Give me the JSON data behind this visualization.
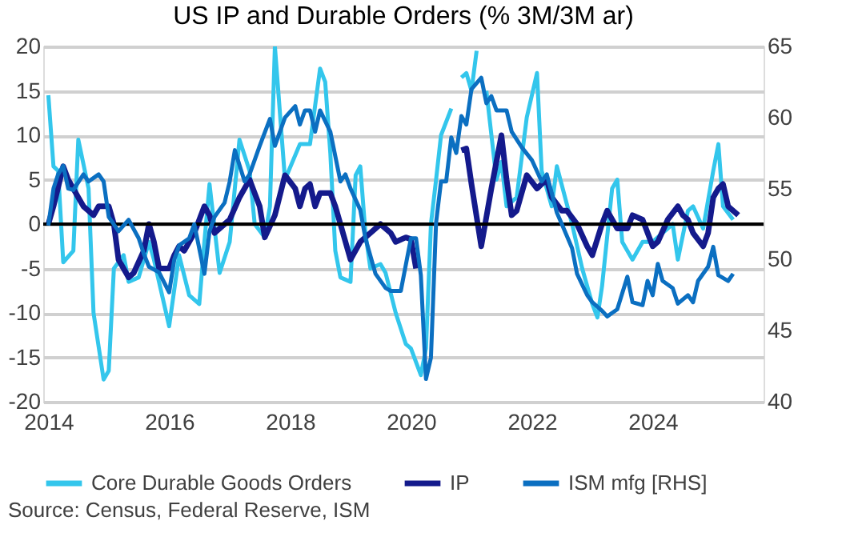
{
  "chart_data": {
    "type": "line",
    "title": "US IP and Durable Orders (% 3M/3M ar)",
    "xlim": [
      "2013-12",
      "2025-11"
    ],
    "xticks": [
      "2014",
      "2016",
      "2018",
      "2020",
      "2022",
      "2024"
    ],
    "ylim": [
      -20,
      20
    ],
    "yticks": [
      -20,
      -15,
      -10,
      -5,
      0,
      5,
      10,
      15,
      20
    ],
    "y2lim": [
      40,
      65
    ],
    "y2ticks": [
      40,
      45,
      50,
      55,
      60,
      65
    ],
    "grid": "y",
    "legend": "bottom",
    "line_style": "solid",
    "marker": "none",
    "ref_lines": [
      {
        "axis": "y",
        "value": 0,
        "color": "#000000"
      }
    ],
    "annotations": [
      "Source: Census, Federal Reserve, ISM"
    ],
    "series": [
      {
        "name": "Core Durable Goods Orders",
        "color": "#33c6ec",
        "x": [
          "2014-01",
          "2014-02",
          "2014-03",
          "2014-04",
          "2014-06",
          "2014-07",
          "2014-09",
          "2014-10",
          "2014-12",
          "2015-01",
          "2015-02",
          "2015-04",
          "2015-05",
          "2015-07",
          "2015-09",
          "2015-10",
          "2016-01",
          "2016-03",
          "2016-05",
          "2016-07",
          "2016-08",
          "2016-09",
          "2016-11",
          "2017-01",
          "2017-03",
          "2017-05",
          "2017-06",
          "2017-08",
          "2017-09",
          "2017-10",
          "2017-12",
          "2018-03",
          "2018-05",
          "2018-07",
          "2018-08",
          "2018-09",
          "2018-10",
          "2018-11",
          "2019-01",
          "2019-02",
          "2019-03",
          "2019-04",
          "2019-05",
          "2019-07",
          "2019-08",
          "2019-10",
          "2019-12",
          "2020-01",
          "2020-03",
          "2020-04",
          "2020-05",
          "2020-06",
          "2020-07",
          "2020-09",
          "2020-10",
          "2020-11",
          "2020-12",
          "2021-01",
          "2021-02",
          "2021-03",
          "2021-04",
          "2021-06",
          "2021-07",
          "2021-08",
          "2021-10",
          "2021-12",
          "2022-02",
          "2022-03",
          "2022-05",
          "2022-06",
          "2022-09",
          "2022-11",
          "2023-01",
          "2023-02",
          "2023-03",
          "2023-05",
          "2023-06",
          "2023-07",
          "2023-09",
          "2023-11",
          "2024-01",
          "2024-03",
          "2024-05",
          "2024-06",
          "2024-08",
          "2024-09",
          "2024-11",
          "2025-01",
          "2025-02",
          "2025-03",
          "2025-05"
        ],
        "values": [
          14.5,
          6.5,
          6,
          -4.3,
          -3,
          9.5,
          4,
          -10,
          -17.5,
          -16.5,
          -5,
          -3.5,
          -6.5,
          -6,
          -2,
          -4,
          -11.5,
          -3.5,
          -8,
          -9,
          -2,
          4.5,
          -5.5,
          -2,
          9.5,
          6,
          0,
          -1.5,
          2,
          20,
          5,
          9,
          9,
          17.5,
          16,
          8,
          -3,
          -6,
          -6.5,
          5.5,
          6.5,
          -1,
          -5,
          -4.5,
          -5.5,
          -10,
          -13.5,
          -14,
          -17,
          -14,
          0,
          5,
          10,
          13,
          null,
          16.5,
          17,
          15,
          19.5,
          null,
          15,
          5,
          7,
          2,
          3,
          12,
          17,
          6,
          2,
          6.5,
          0,
          -5,
          -9,
          -10.5,
          -7,
          4,
          5,
          -2,
          -4,
          -2,
          -2,
          -1,
          0,
          -4,
          1.5,
          2,
          -0.5,
          6,
          9,
          2,
          0.5
        ]
      },
      {
        "name": "IP",
        "color": "#141a8c",
        "x": [
          "2014-01",
          "2014-02",
          "2014-04",
          "2014-05",
          "2014-07",
          "2014-08",
          "2014-10",
          "2014-11",
          "2015-01",
          "2015-02",
          "2015-03",
          "2015-05",
          "2015-06",
          "2015-08",
          "2015-09",
          "2015-10",
          "2015-11",
          "2016-01",
          "2016-02",
          "2016-03",
          "2016-04",
          "2016-06",
          "2016-08",
          "2016-09",
          "2016-10",
          "2016-12",
          "2017-01",
          "2017-03",
          "2017-05",
          "2017-07",
          "2017-08",
          "2017-10",
          "2017-12",
          "2018-02",
          "2018-03",
          "2018-04",
          "2018-05",
          "2018-06",
          "2018-07",
          "2018-09",
          "2018-10",
          "2018-11",
          "2019-01",
          "2019-03",
          "2019-05",
          "2019-07",
          "2019-09",
          "2019-10",
          "2019-12",
          "2020-01",
          "2020-02",
          "2020-03",
          "2020-10",
          "2020-11",
          "2020-12",
          "2021-01",
          "2021-03",
          "2021-05",
          "2021-07",
          "2021-08",
          "2021-09",
          "2021-10",
          "2021-12",
          "2022-02",
          "2022-03",
          "2022-04",
          "2022-05",
          "2022-07",
          "2022-08",
          "2022-10",
          "2022-12",
          "2023-01",
          "2023-03",
          "2023-04",
          "2023-06",
          "2023-08",
          "2023-09",
          "2023-11",
          "2024-01",
          "2024-02",
          "2024-04",
          "2024-06",
          "2024-07",
          "2024-08",
          "2024-09",
          "2024-11",
          "2024-12",
          "2025-01",
          "2025-02",
          "2025-03",
          "2025-04",
          "2025-06"
        ],
        "values": [
          0,
          2,
          6.5,
          5,
          3,
          2,
          1,
          2,
          2,
          0,
          -4,
          -6,
          -5.5,
          -3,
          0,
          -2,
          -5,
          -5,
          -3.5,
          -2.5,
          -3,
          -1,
          2,
          1,
          -1,
          0,
          0.5,
          3,
          5,
          2,
          -1.5,
          1,
          5.5,
          4,
          2,
          4,
          4.5,
          2,
          3.5,
          3.5,
          2,
          0,
          -4,
          -2,
          -1,
          0,
          -1,
          -2,
          -1.5,
          -1.7,
          -5,
          null,
          null,
          8.3,
          8.5,
          4.5,
          -2.5,
          4,
          10,
          5,
          1,
          1.5,
          5.5,
          4,
          4.5,
          5,
          3,
          1.5,
          1.5,
          0,
          -2.5,
          -3.5,
          0,
          1.5,
          -0.5,
          -0.5,
          1,
          0.5,
          -2.5,
          -2,
          0.5,
          2,
          1,
          0.5,
          -1,
          -2.5,
          -1,
          3,
          4,
          4.5,
          2,
          1
        ]
      },
      {
        "name": "ISM mfg [RHS]",
        "color": "#0b6fc1",
        "axis": "y2",
        "x": [
          "2014-01",
          "2014-02",
          "2014-03",
          "2014-04",
          "2014-05",
          "2014-06",
          "2014-08",
          "2014-09",
          "2014-11",
          "2014-12",
          "2015-01",
          "2015-03",
          "2015-05",
          "2015-07",
          "2015-08",
          "2015-09",
          "2015-11",
          "2016-01",
          "2016-02",
          "2016-03",
          "2016-05",
          "2016-06",
          "2016-08",
          "2016-09",
          "2016-10",
          "2016-12",
          "2017-01",
          "2017-02",
          "2017-04",
          "2017-05",
          "2017-07",
          "2017-09",
          "2017-10",
          "2017-12",
          "2018-02",
          "2018-03",
          "2018-04",
          "2018-05",
          "2018-06",
          "2018-07",
          "2018-09",
          "2018-11",
          "2018-12",
          "2019-01",
          "2019-03",
          "2019-04",
          "2019-06",
          "2019-08",
          "2019-09",
          "2019-11",
          "2020-01",
          "2020-02",
          "2020-03",
          "2020-04",
          "2020-05",
          "2020-06",
          "2020-07",
          "2020-08",
          "2020-09",
          "2020-10",
          "2020-11",
          "2020-12",
          "2021-01",
          "2021-03",
          "2021-04",
          "2021-05",
          "2021-06",
          "2021-08",
          "2021-09",
          "2021-11",
          "2022-01",
          "2022-03",
          "2022-04",
          "2022-06",
          "2022-07",
          "2022-09",
          "2022-10",
          "2022-12",
          "2023-01",
          "2023-03",
          "2023-04",
          "2023-06",
          "2023-08",
          "2023-09",
          "2023-11",
          "2023-12",
          "2024-01",
          "2024-02",
          "2024-03",
          "2024-05",
          "2024-06",
          "2024-08",
          "2024-09",
          "2024-10",
          "2024-12",
          "2025-01",
          "2025-02",
          "2025-04",
          "2025-05"
        ],
        "values": [
          52.4,
          55,
          56,
          56.6,
          55,
          54.9,
          56,
          55.5,
          56,
          55.5,
          53,
          52,
          52.8,
          51.5,
          50.4,
          49.5,
          49.1,
          47.7,
          50,
          51,
          51.5,
          52.5,
          49,
          52,
          53,
          54,
          55.5,
          57.7,
          55.5,
          56,
          58,
          59.9,
          58,
          60,
          60.8,
          59.5,
          60.5,
          60.5,
          59,
          60.5,
          59,
          55.5,
          56,
          55,
          53.5,
          51.5,
          49,
          48,
          47.8,
          47.8,
          51.5,
          51.5,
          48.9,
          41.6,
          43.1,
          52.6,
          55.5,
          55.5,
          58.6,
          57.5,
          60.1,
          59.5,
          62,
          62.8,
          61,
          61.5,
          60.5,
          60.5,
          59,
          57.9,
          57,
          55.5,
          56,
          53.3,
          52.5,
          50.8,
          49,
          47.5,
          47,
          46.4,
          46,
          46.5,
          48.8,
          47,
          46.8,
          48.5,
          47.5,
          49.7,
          48.5,
          48,
          46.9,
          47.5,
          47,
          48.5,
          49.5,
          50.9,
          48.9,
          48.5,
          49
        ]
      }
    ]
  }
}
